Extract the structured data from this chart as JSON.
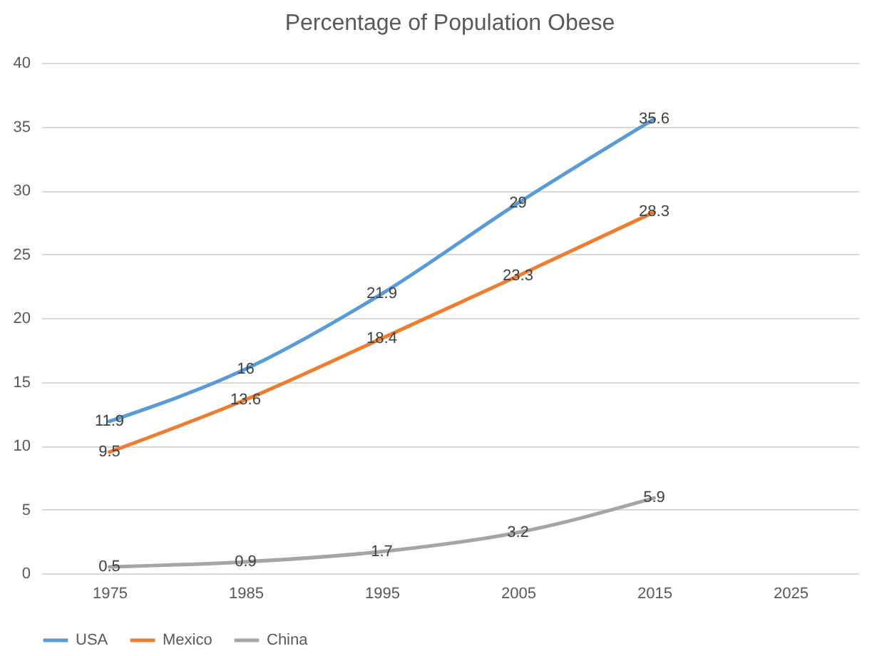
{
  "chart_data": {
    "type": "line",
    "title": "Percentage of Population Obese",
    "x": [
      1975,
      1985,
      1995,
      2005,
      2015
    ],
    "series": [
      {
        "name": "USA",
        "color": "#5b9bd5",
        "values": [
          11.9,
          16,
          21.9,
          29,
          35.6
        ]
      },
      {
        "name": "Mexico",
        "color": "#ed7d31",
        "values": [
          9.5,
          13.6,
          18.4,
          23.3,
          28.3
        ]
      },
      {
        "name": "China",
        "color": "#a5a5a5",
        "values": [
          0.5,
          0.9,
          1.7,
          3.2,
          5.9
        ]
      }
    ],
    "xlim": [
      1970,
      2030
    ],
    "xticks": [
      1975,
      1985,
      1995,
      2005,
      2015,
      2025
    ],
    "ylim": [
      0,
      40
    ],
    "yticks": [
      0,
      5,
      10,
      15,
      20,
      25,
      30,
      35,
      40
    ],
    "grid": "y",
    "legend": "bottom",
    "data_labels": true
  }
}
